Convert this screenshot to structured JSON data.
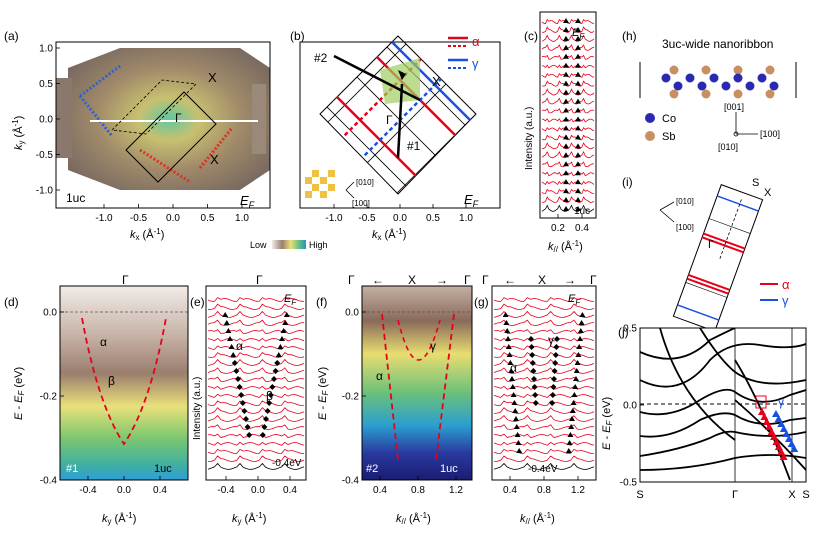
{
  "panels": {
    "a": {
      "label": "(a)",
      "sample": "1uc",
      "ef": "E",
      "ef_sub": "F",
      "gamma": "Γ",
      "x1": "X",
      "x2": "X",
      "xlabel_k": "k",
      "xlabel_sub": "x",
      "xlabel_unit": " (Å",
      "xlabel_exp": "-1",
      "xlabel_end": ")",
      "ylabel_k": "k",
      "ylabel_sub": "y",
      "ylabel_unit": " (Å",
      "ylabel_exp": "-1",
      "ylabel_end": ")",
      "xticks": [
        "-1.0",
        "-0.5",
        "0.0",
        "0.5",
        "1.0"
      ],
      "yticks": [
        "1.0",
        "0.5",
        "0.0",
        "-0.5",
        "-1.0"
      ]
    },
    "b": {
      "label": "(b)",
      "legend_alpha": "α",
      "legend_gamma": "γ",
      "cut2": "#2",
      "cut1": "#1",
      "gamma": "Γ",
      "x": "X",
      "dir1": "[010]",
      "dir2": "[100]",
      "ef": "E",
      "ef_sub": "F",
      "xlabel_k": "k",
      "xlabel_sub": "x",
      "xlabel_unit": " (Å",
      "xlabel_exp": "-1",
      "xlabel_end": ")",
      "xticks": [
        "-1.0",
        "-0.5",
        "0.0",
        "0.5",
        "1.0"
      ]
    },
    "c": {
      "label": "(c)",
      "ef": "E",
      "ef_sub": "F",
      "sample": "1uc",
      "ylabel": "Intensity (a.u.)",
      "xlabel_k": "k",
      "xlabel_sub": "//",
      "xlabel_unit": " (Å",
      "xlabel_exp": "-1",
      "xlabel_end": ")",
      "xticks": [
        "0.2",
        "0.4"
      ]
    },
    "h": {
      "label": "(h)",
      "title": "3uc-wide nanoribbon",
      "legend_co": "Co",
      "legend_sb": "Sb",
      "dir_001": "[001]",
      "dir_100": "[100]",
      "dir_010": "[010]",
      "colors": {
        "co": "#2a2ab0",
        "sb": "#c89060"
      }
    },
    "i": {
      "label": "(i)",
      "s": "S",
      "x": "X",
      "gamma": "Γ",
      "dir1": "[010]",
      "dir2": "[100]",
      "alpha": "α",
      "gammaband": "γ"
    },
    "d": {
      "label": "(d)",
      "top": "Γ",
      "alpha": "α",
      "beta": "β",
      "cut": "#1",
      "sample": "1uc",
      "ylabel_pre": "E - E",
      "ylabel_sub": "F",
      "ylabel_end": " (eV)",
      "xlabel_k": "k",
      "xlabel_sub": "y",
      "xlabel_unit": " (Å",
      "xlabel_exp": "-1",
      "xlabel_end": ")",
      "xticks": [
        "-0.4",
        "0.0",
        "0.4"
      ],
      "yticks": [
        "0.0",
        "-0.2",
        "-0.4"
      ]
    },
    "e": {
      "label": "(e)",
      "top": "Γ",
      "ef": "E",
      "ef_sub": "F",
      "alpha": "α",
      "beta": "β",
      "bottom_energy": "-0.4eV",
      "ylabel": "Intensity (a.u.)",
      "xlabel_k": "k",
      "xlabel_sub": "y",
      "xlabel_unit": " (Å",
      "xlabel_exp": "-1",
      "xlabel_end": ")",
      "xticks": [
        "-0.4",
        "0.0",
        "0.4"
      ]
    },
    "f": {
      "label": "(f)",
      "top": [
        "Γ",
        "←",
        "X",
        "→",
        "Γ"
      ],
      "alpha": "α",
      "gammaband": "γ",
      "cut": "#2",
      "sample": "1uc",
      "ylabel_pre": "E - E",
      "ylabel_sub": "F",
      "ylabel_end": " (eV)",
      "xlabel_k": "k",
      "xlabel_sub": "//",
      "xlabel_unit": " (Å",
      "xlabel_exp": "-1",
      "xlabel_end": ")",
      "xticks": [
        "0.4",
        "0.8",
        "1.2"
      ],
      "yticks": [
        "0.0",
        "-0.2",
        "-0.4"
      ]
    },
    "g": {
      "label": "(g)",
      "top": [
        "Γ",
        "←",
        "X",
        "→",
        "Γ"
      ],
      "ef": "E",
      "ef_sub": "F",
      "alpha": "α",
      "gammaband": "γ",
      "bottom_energy": "-0.4eV",
      "xlabel_k": "k",
      "xlabel_sub": "//",
      "xlabel_unit": " (Å",
      "xlabel_exp": "-1",
      "xlabel_end": ")",
      "xticks": [
        "0.4",
        "0.8",
        "1.2"
      ]
    },
    "j": {
      "label": "(j)",
      "alpha": "α",
      "gammaband": "γ",
      "ylabel_pre": "E - E",
      "ylabel_sub": "F",
      "ylabel_end": " (eV)",
      "yticks": [
        "0.5",
        "0.0",
        "-0.5"
      ],
      "xticks": [
        "S",
        "Γ",
        "X",
        "S"
      ]
    }
  },
  "colorbar": {
    "low": "Low",
    "high": "High"
  },
  "colors": {
    "alpha": "#e8001a",
    "gamma": "#1a50e0",
    "cut": "#000000"
  }
}
